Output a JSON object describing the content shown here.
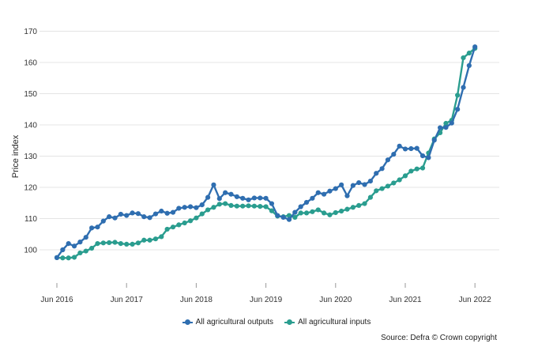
{
  "chart_data": {
    "type": "line",
    "title": "",
    "xlabel": "",
    "ylabel": "Price index",
    "ylim": [
      90,
      170
    ],
    "yticks": [
      100,
      110,
      120,
      130,
      140,
      150,
      160,
      170
    ],
    "xticks": [
      "Jun 2016",
      "Jun 2017",
      "Jun 2018",
      "Jun 2019",
      "Jun 2020",
      "Jun 2021",
      "Jun 2022"
    ],
    "xtick_index": [
      0,
      12,
      24,
      36,
      48,
      60,
      72
    ],
    "grid": "horizontal",
    "legend_placement": "bottom",
    "source": "Source: Defra © Crown copyright",
    "series": [
      {
        "name": "All agricultural outputs",
        "color": "#2f6eb0",
        "values": [
          97.5,
          100.0,
          102.0,
          101.2,
          102.5,
          104.0,
          107.0,
          107.3,
          109.2,
          110.6,
          110.2,
          111.4,
          111.0,
          111.8,
          111.6,
          110.6,
          110.3,
          111.5,
          112.4,
          111.7,
          112.0,
          113.3,
          113.6,
          113.8,
          113.5,
          114.4,
          116.8,
          120.8,
          116.4,
          118.3,
          117.8,
          117.0,
          116.5,
          116.0,
          116.6,
          116.6,
          116.5,
          114.8,
          111.0,
          110.4,
          109.7,
          112.0,
          113.8,
          115.2,
          116.5,
          118.3,
          117.8,
          118.8,
          119.6,
          120.8,
          117.3,
          120.6,
          121.5,
          120.9,
          122.0,
          124.5,
          126.0,
          128.8,
          130.6,
          133.2,
          132.3,
          132.4,
          132.5,
          130.1,
          129.5,
          135.1,
          139.1,
          139.2,
          140.6,
          145.0,
          152.0,
          159.0,
          165.0
        ]
      },
      {
        "name": "All agricultural inputs",
        "color": "#2a9d8f",
        "values": [
          97.5,
          97.4,
          97.4,
          97.6,
          99.0,
          99.6,
          100.5,
          102.0,
          102.2,
          102.3,
          102.4,
          102.0,
          101.8,
          101.8,
          102.2,
          103.1,
          103.1,
          103.5,
          104.2,
          106.6,
          107.3,
          108.0,
          108.6,
          109.3,
          110.2,
          111.5,
          112.8,
          113.6,
          114.6,
          114.8,
          114.2,
          114.0,
          114.0,
          114.1,
          114.0,
          113.9,
          113.8,
          112.5,
          110.8,
          110.6,
          111.0,
          110.4,
          111.8,
          111.8,
          112.2,
          112.8,
          111.8,
          111.2,
          111.9,
          112.4,
          113.0,
          113.6,
          114.2,
          114.8,
          116.8,
          118.9,
          119.6,
          120.4,
          121.4,
          122.4,
          123.7,
          125.2,
          125.9,
          126.2,
          131.0,
          135.5,
          137.5,
          140.5,
          141.5,
          149.5,
          161.5,
          163.0,
          164.5
        ]
      }
    ]
  }
}
